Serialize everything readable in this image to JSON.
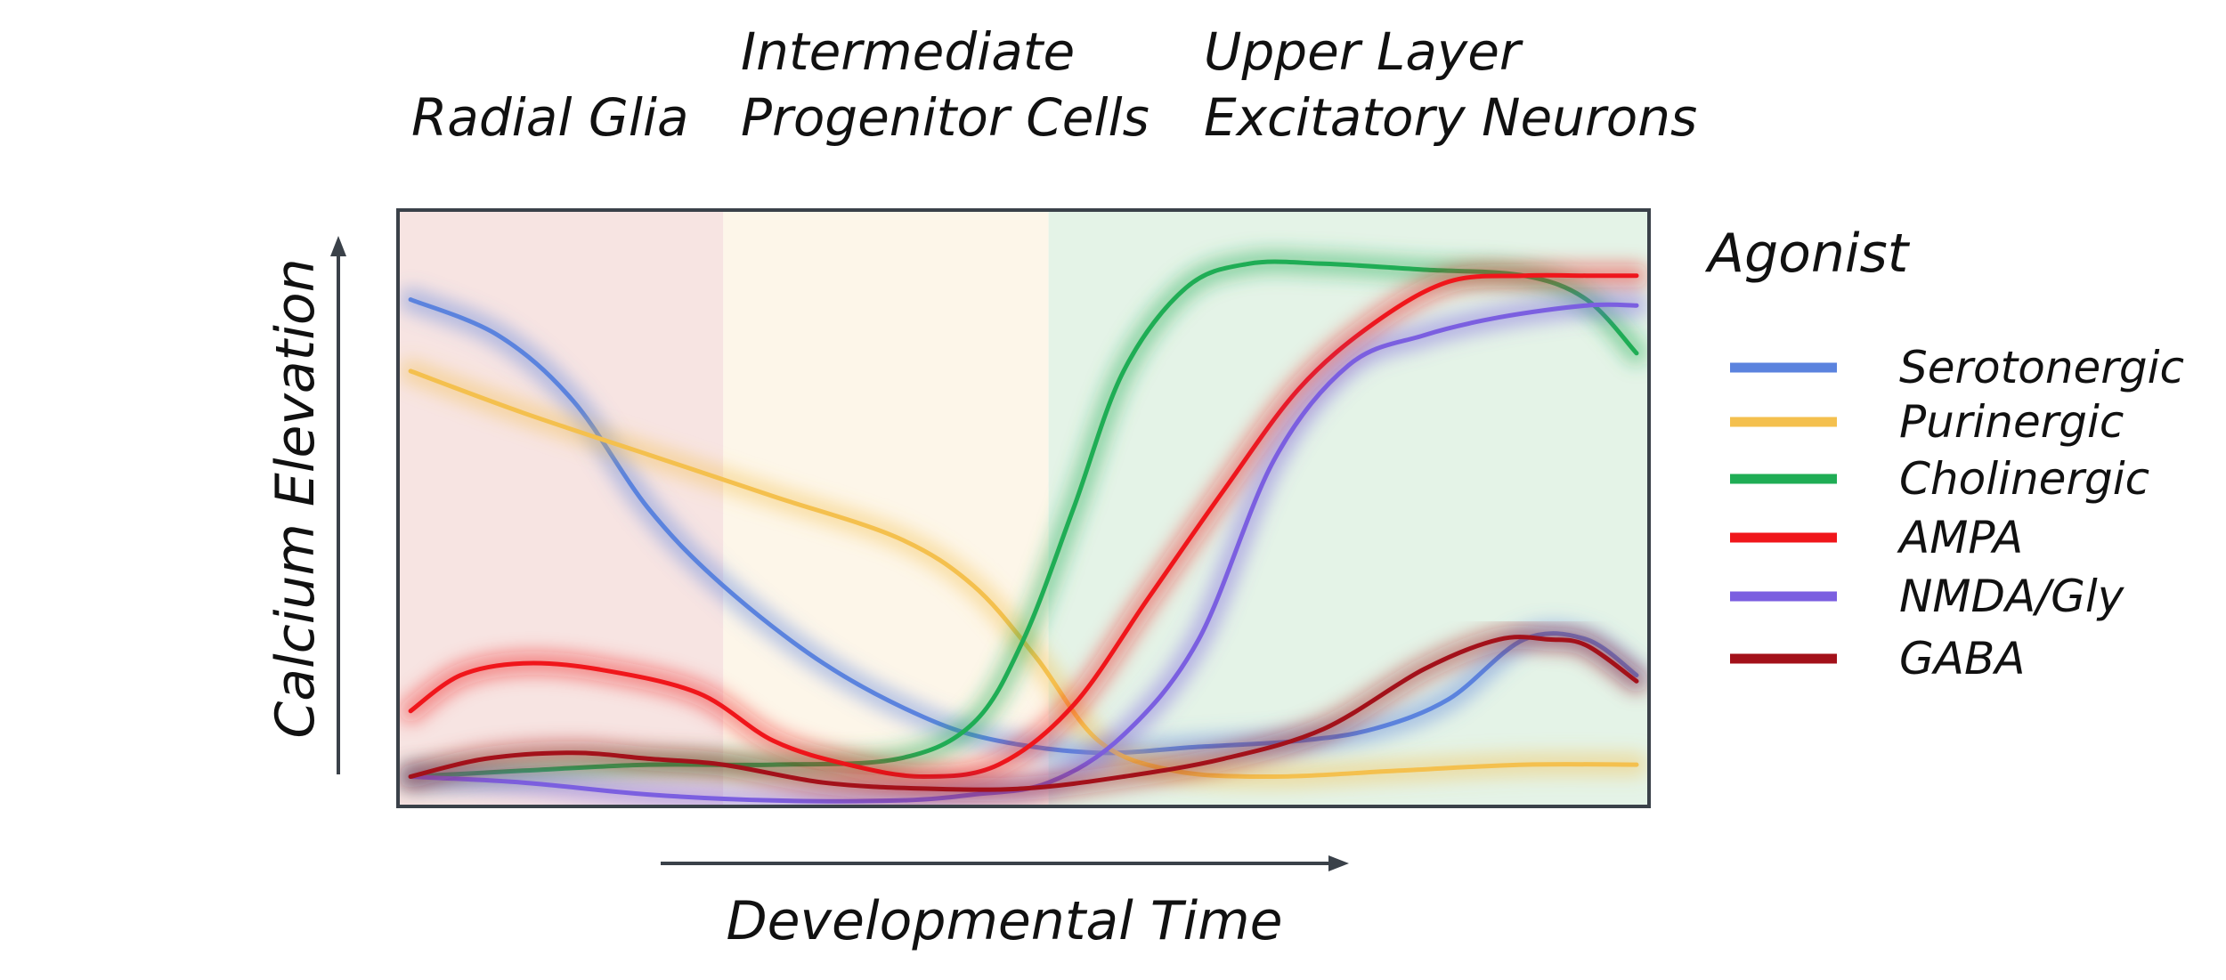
{
  "chart_data": {
    "type": "line",
    "title": "",
    "xlabel": "Developmental Time",
    "ylabel": "Calcium Elevation",
    "xlim": [
      0,
      100
    ],
    "ylim": [
      0,
      100
    ],
    "grid": false,
    "legend": {
      "title": "Agonist",
      "placement": "right"
    },
    "stages": [
      {
        "name": "radial-glia",
        "lines": [
          "Radial Glia"
        ],
        "x_range": [
          0,
          26
        ],
        "color": "#f7e4e2"
      },
      {
        "name": "ipc",
        "lines": [
          "Intermediate",
          "Progenitor Cells"
        ],
        "x_range": [
          26,
          52
        ],
        "color": "#fdf6e9"
      },
      {
        "name": "upper-layer",
        "lines": [
          "Upper Layer",
          "Excitatory Neurons"
        ],
        "x_range": [
          52,
          100
        ],
        "color": "#e4f3e7"
      }
    ],
    "series": [
      {
        "name": "Serotonergic",
        "color": "#5b83de",
        "x": [
          1,
          8,
          14,
          20,
          26,
          34,
          42,
          48,
          56,
          64,
          72,
          78,
          84,
          90,
          95,
          99
        ],
        "y": [
          85,
          79,
          68,
          50,
          37,
          24,
          15,
          11,
          9,
          10,
          11,
          13,
          18,
          28,
          28,
          22
        ]
      },
      {
        "name": "Purinergic",
        "color": "#f4c04e",
        "x": [
          1,
          10,
          20,
          30,
          40,
          46,
          51,
          56,
          62,
          70,
          80,
          90,
          99
        ],
        "y": [
          73,
          66,
          59,
          52,
          45,
          37,
          25,
          11,
          6,
          5,
          6,
          7,
          7
        ]
      },
      {
        "name": "Cholinergic",
        "color": "#1fad55",
        "x": [
          1,
          10,
          20,
          30,
          40,
          46,
          50,
          54,
          58,
          63,
          68,
          74,
          82,
          90,
          95,
          99
        ],
        "y": [
          5,
          6,
          7,
          7,
          8,
          14,
          28,
          50,
          73,
          87,
          91,
          91,
          90,
          89,
          85,
          76
        ]
      },
      {
        "name": "AMPA",
        "color": "#f0161b",
        "x": [
          1,
          5,
          10,
          16,
          24,
          30,
          36,
          42,
          48,
          54,
          60,
          66,
          72,
          78,
          84,
          90,
          95,
          99
        ],
        "y": [
          16,
          22,
          24,
          23,
          19,
          11,
          7,
          5,
          7,
          17,
          35,
          53,
          70,
          81,
          88,
          89,
          89,
          89
        ]
      },
      {
        "name": "NMDA/Gly",
        "color": "#7b5fe0",
        "x": [
          1,
          10,
          20,
          30,
          40,
          46,
          52,
          58,
          64,
          70,
          76,
          82,
          88,
          95,
          99
        ],
        "y": [
          5,
          4,
          2,
          1,
          1,
          2,
          4,
          12,
          28,
          58,
          74,
          79,
          82,
          84,
          84
        ]
      },
      {
        "name": "GABA",
        "color": "#a3111a",
        "x": [
          1,
          7,
          14,
          20,
          26,
          34,
          42,
          50,
          58,
          66,
          74,
          82,
          88,
          92,
          95,
          99
        ],
        "y": [
          5,
          8,
          9,
          8,
          7,
          4,
          3,
          3,
          5,
          8,
          13,
          23,
          28,
          28,
          27,
          21
        ]
      }
    ]
  }
}
